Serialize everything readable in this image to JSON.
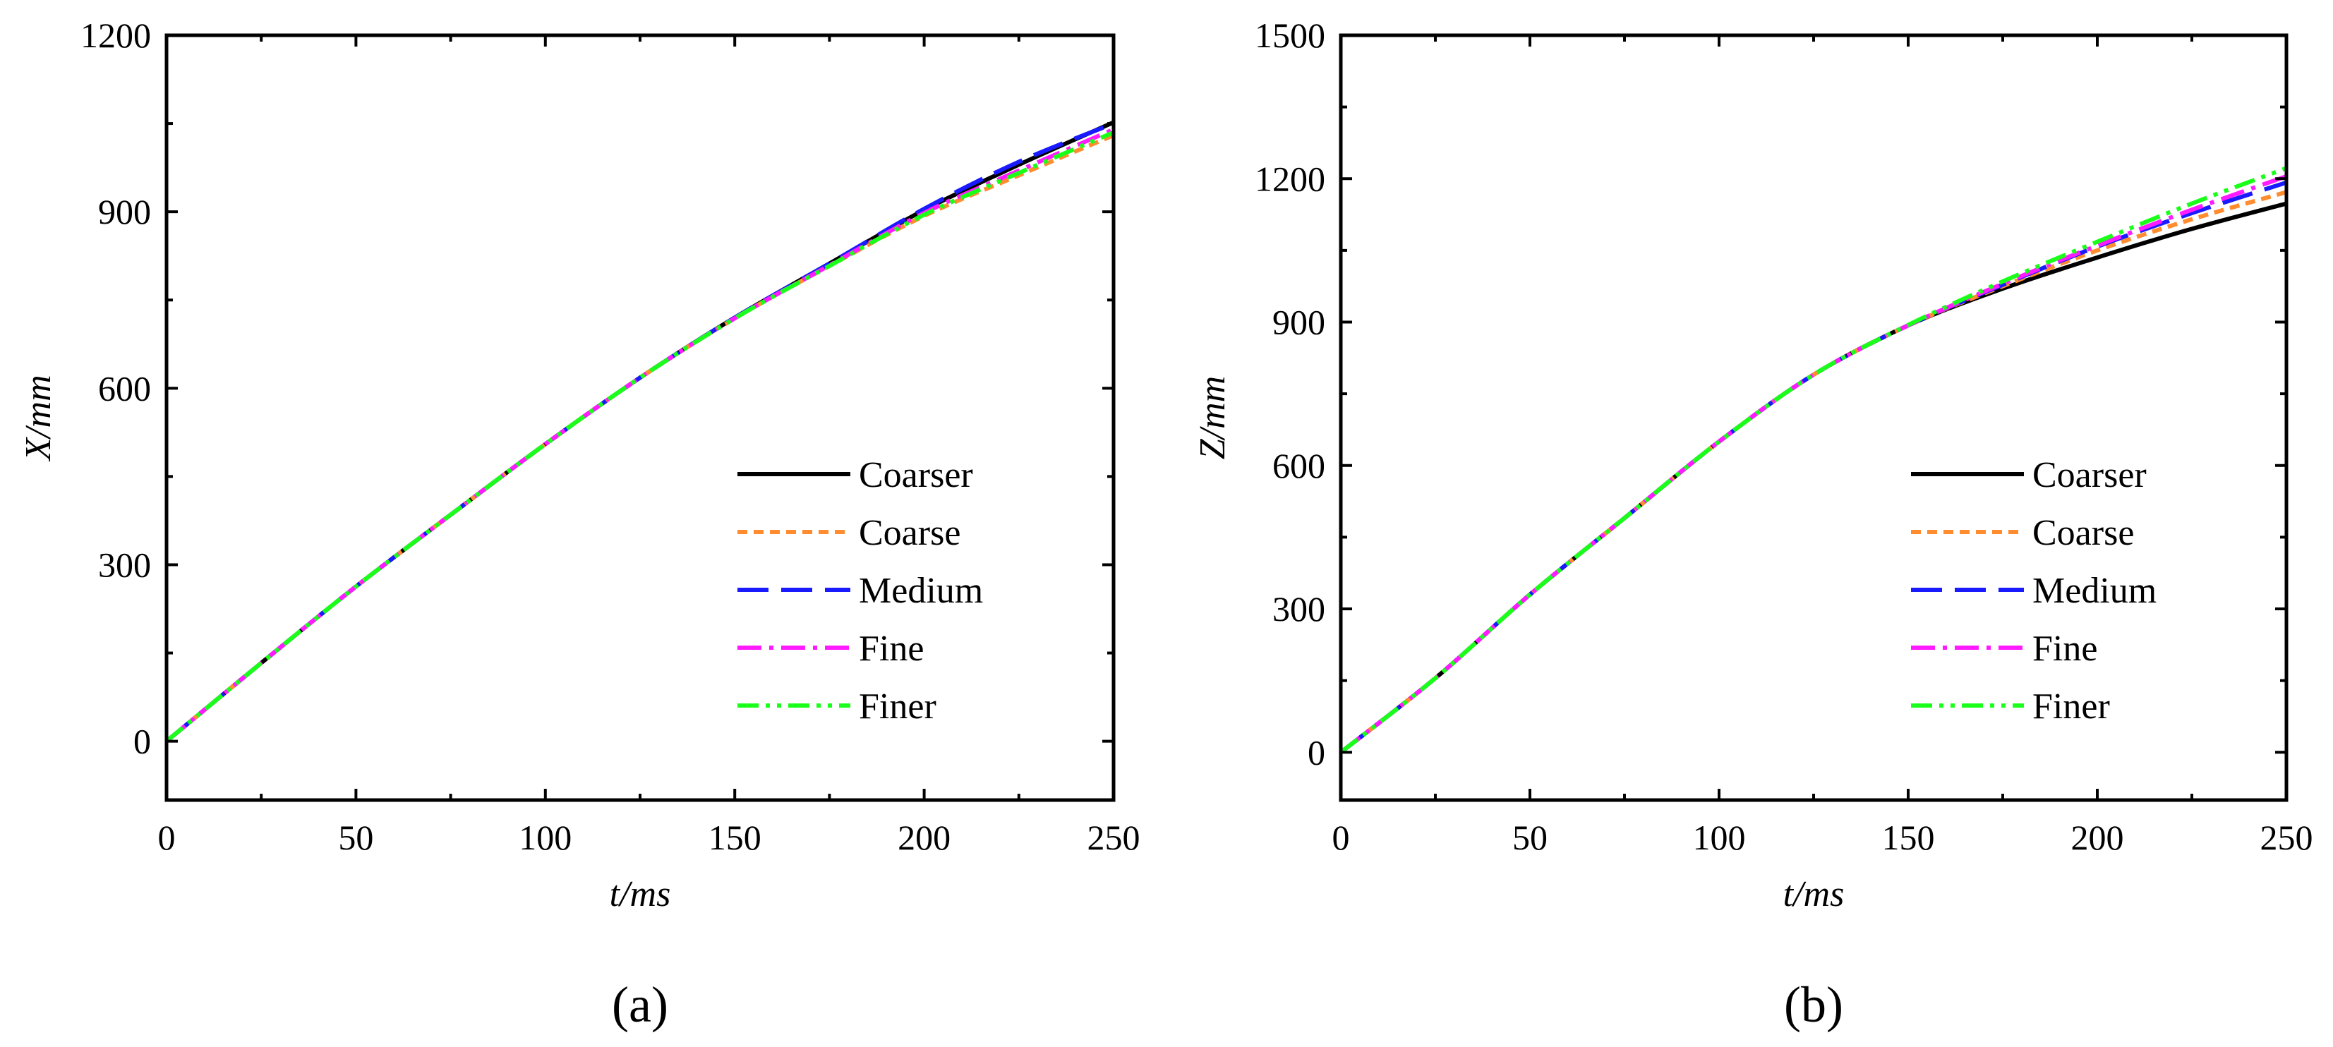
{
  "chart_data": [
    {
      "type": "line",
      "panel_label": "(a)",
      "xlabel": "t/ms",
      "ylabel": "X/mm",
      "xlim": [
        0,
        250
      ],
      "ylim": [
        -100,
        1200
      ],
      "xticks": [
        0,
        50,
        100,
        150,
        200,
        250
      ],
      "yticks": [
        0,
        300,
        600,
        900,
        1200
      ],
      "legend_position": "bottom-right",
      "grid": false,
      "x": [
        0,
        25,
        50,
        75,
        100,
        125,
        150,
        175,
        200,
        225,
        250
      ],
      "series": [
        {
          "name": "Coarser",
          "color": "#000000",
          "dash": "solid",
          "values": [
            0,
            133,
            263,
            385,
            505,
            618,
            720,
            812,
            903,
            980,
            1052
          ]
        },
        {
          "name": "Coarse",
          "color": "#ff8c2e",
          "dash": "short-dash",
          "values": [
            0,
            133,
            263,
            385,
            505,
            618,
            719,
            808,
            893,
            962,
            1030
          ]
        },
        {
          "name": "Medium",
          "color": "#1a1aff",
          "dash": "long-dash",
          "values": [
            0,
            133,
            263,
            385,
            505,
            618,
            720,
            812,
            905,
            985,
            1050
          ]
        },
        {
          "name": "Fine",
          "color": "#ff1aff",
          "dash": "dash-dot",
          "values": [
            0,
            133,
            263,
            385,
            505,
            618,
            719,
            809,
            898,
            970,
            1040
          ]
        },
        {
          "name": "Finer",
          "color": "#1aff1a",
          "dash": "dash-dot-dot",
          "values": [
            0,
            133,
            263,
            385,
            505,
            618,
            719,
            808,
            895,
            966,
            1035
          ]
        }
      ]
    },
    {
      "type": "line",
      "panel_label": "(b)",
      "xlabel": "t/ms",
      "ylabel": "Z/mm",
      "xlim": [
        0,
        250
      ],
      "ylim": [
        -100,
        1500
      ],
      "xticks": [
        0,
        50,
        100,
        150,
        200,
        250
      ],
      "yticks": [
        0,
        300,
        600,
        900,
        1200,
        1500
      ],
      "legend_position": "bottom-right",
      "grid": false,
      "x": [
        0,
        25,
        50,
        75,
        100,
        125,
        150,
        175,
        200,
        225,
        250
      ],
      "series": [
        {
          "name": "Coarser",
          "color": "#000000",
          "dash": "solid",
          "values": [
            0,
            155,
            330,
            490,
            650,
            790,
            893,
            970,
            1035,
            1095,
            1148
          ]
        },
        {
          "name": "Coarse",
          "color": "#ff8c2e",
          "dash": "short-dash",
          "values": [
            0,
            155,
            330,
            490,
            650,
            790,
            893,
            975,
            1050,
            1115,
            1172
          ]
        },
        {
          "name": "Medium",
          "color": "#1a1aff",
          "dash": "long-dash",
          "values": [
            0,
            155,
            330,
            490,
            650,
            790,
            893,
            978,
            1058,
            1128,
            1192
          ]
        },
        {
          "name": "Fine",
          "color": "#ff1aff",
          "dash": "dash-dot",
          "values": [
            0,
            155,
            330,
            490,
            650,
            790,
            893,
            980,
            1060,
            1135,
            1205
          ]
        },
        {
          "name": "Finer",
          "color": "#1aff1a",
          "dash": "dash-dot-dot",
          "values": [
            0,
            155,
            330,
            490,
            650,
            790,
            894,
            985,
            1068,
            1148,
            1222
          ]
        }
      ]
    }
  ]
}
